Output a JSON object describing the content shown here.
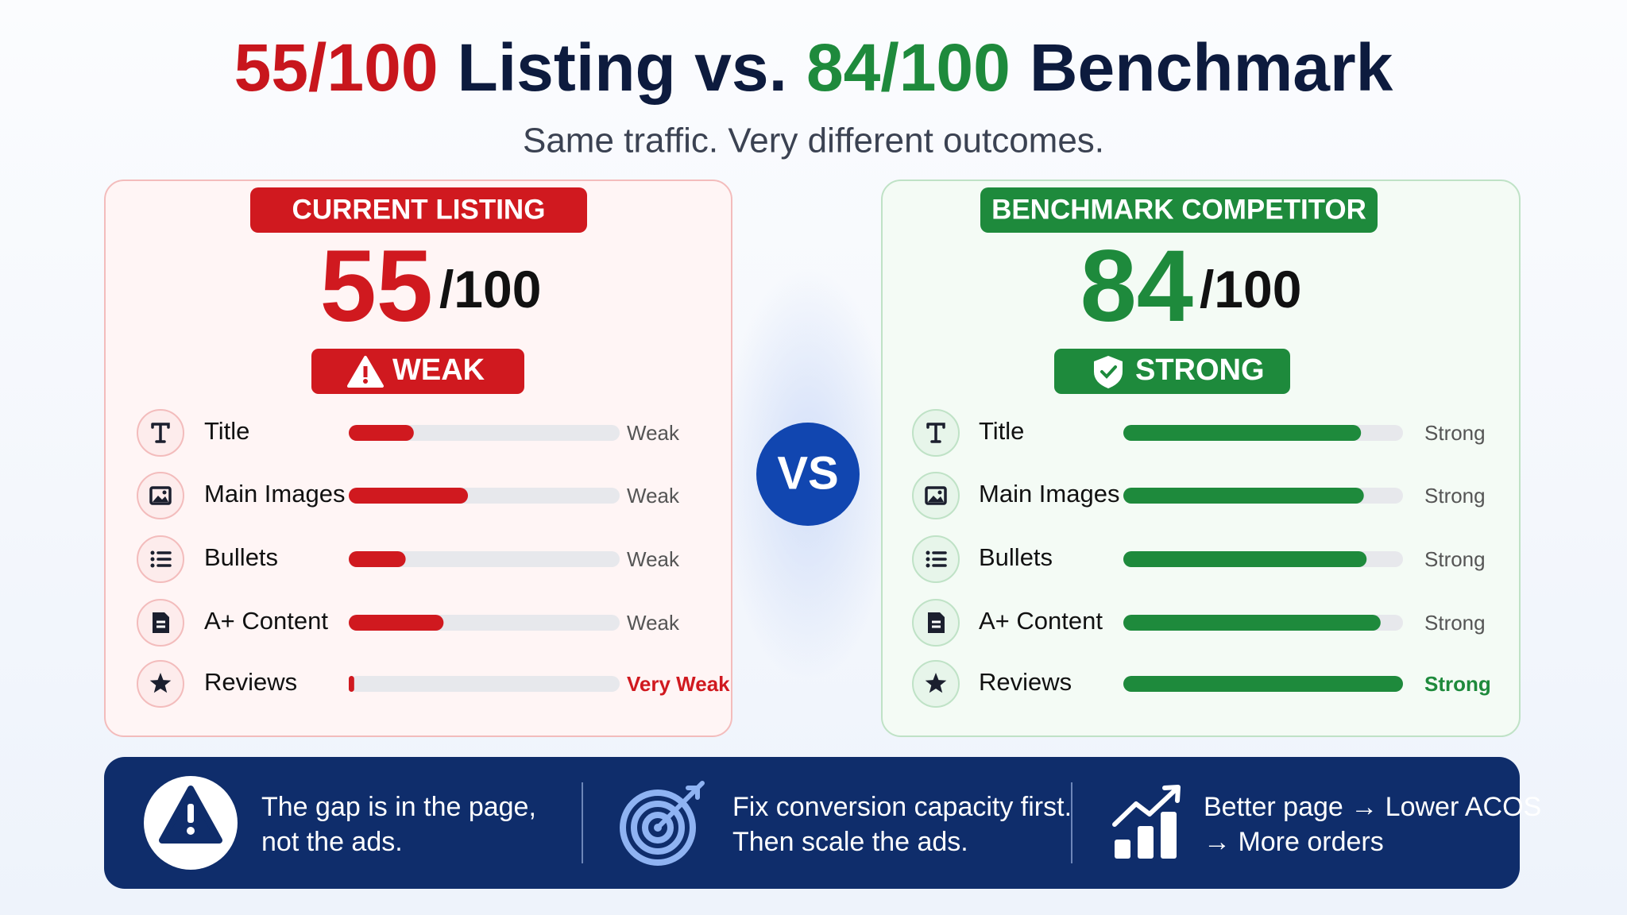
{
  "header": {
    "title": [
      {
        "text": "55/100",
        "color": "#c8161d"
      },
      {
        "text": "Listing vs.",
        "color": "#0d1b3e"
      },
      {
        "text": "84/100",
        "color": "#1e8a3c"
      },
      {
        "text": "Benchmark",
        "color": "#0d1b3e"
      }
    ],
    "subtitle": "Same traffic. Very different outcomes."
  },
  "panels": [
    {
      "label": "CURRENT LISTING",
      "score": "55",
      "out_of": "/100",
      "badge": "WEAK",
      "color": "#d0191f",
      "fill": "#fff5f5",
      "border": "#f3bcbc",
      "icon_bg": "#fdecec",
      "xlim": [
        0,
        100
      ],
      "rows": [
        {
          "label": "Title",
          "value": 24,
          "status": "Weak",
          "status_color": "#555555"
        },
        {
          "label": "Main Images",
          "value": 44,
          "status": "Weak",
          "status_color": "#555555"
        },
        {
          "label": "Bullets",
          "value": 21,
          "status": "Weak",
          "status_color": "#555555"
        },
        {
          "label": "A+ Content",
          "value": 35,
          "status": "Weak",
          "status_color": "#555555"
        },
        {
          "label": "Reviews",
          "value": 2,
          "status": "Very Weak",
          "status_color": "#d0191f"
        }
      ]
    },
    {
      "label": "BENCHMARK COMPETITOR",
      "score": "84",
      "out_of": "/100",
      "badge": "STRONG",
      "color": "#1e8a3c",
      "fill": "#f4fbf5",
      "border": "#bfe2c6",
      "icon_bg": "#e7f5ea",
      "xlim": [
        0,
        100
      ],
      "rows": [
        {
          "label": "Title",
          "value": 85,
          "status": "Strong",
          "status_color": "#555555"
        },
        {
          "label": "Main Images",
          "value": 86,
          "status": "Strong",
          "status_color": "#555555"
        },
        {
          "label": "Bullets",
          "value": 87,
          "status": "Strong",
          "status_color": "#555555"
        },
        {
          "label": "A+ Content",
          "value": 92,
          "status": "Strong",
          "status_color": "#555555"
        },
        {
          "label": "Reviews",
          "value": 100,
          "status": "Strong",
          "status_color": "#1e8a3c"
        }
      ]
    }
  ],
  "vs": "VS",
  "footer": [
    {
      "lines": [
        "The gap is in the page,",
        "not the ads."
      ]
    },
    {
      "lines": [
        "Fix conversion capacity first.",
        "Then scale the ads."
      ]
    },
    {
      "lines": [
        "Better page → Lower ACOS",
        "→ More orders"
      ]
    }
  ]
}
